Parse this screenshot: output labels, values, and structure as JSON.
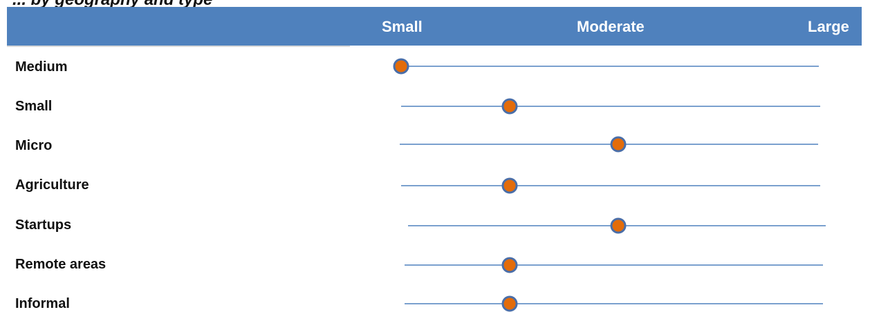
{
  "chart_data": {
    "type": "scatter",
    "title": "... by geography and type",
    "scale_labels": [
      "Small",
      "Moderate",
      "Large"
    ],
    "scale_range": [
      0,
      4
    ],
    "rows": [
      {
        "label": "Medium",
        "value": 0
      },
      {
        "label": "Small",
        "value": 1
      },
      {
        "label": "Micro",
        "value": 2
      },
      {
        "label": "Agriculture",
        "value": 1
      },
      {
        "label": "Startups",
        "value": 2
      },
      {
        "label": "Remote areas",
        "value": 1
      },
      {
        "label": "Informal",
        "value": 1
      }
    ],
    "colors": {
      "header": "#4f81bd",
      "line": "#4f81bd",
      "marker_fill": "#e36c0a",
      "marker_stroke": "#4a6ea8"
    }
  }
}
